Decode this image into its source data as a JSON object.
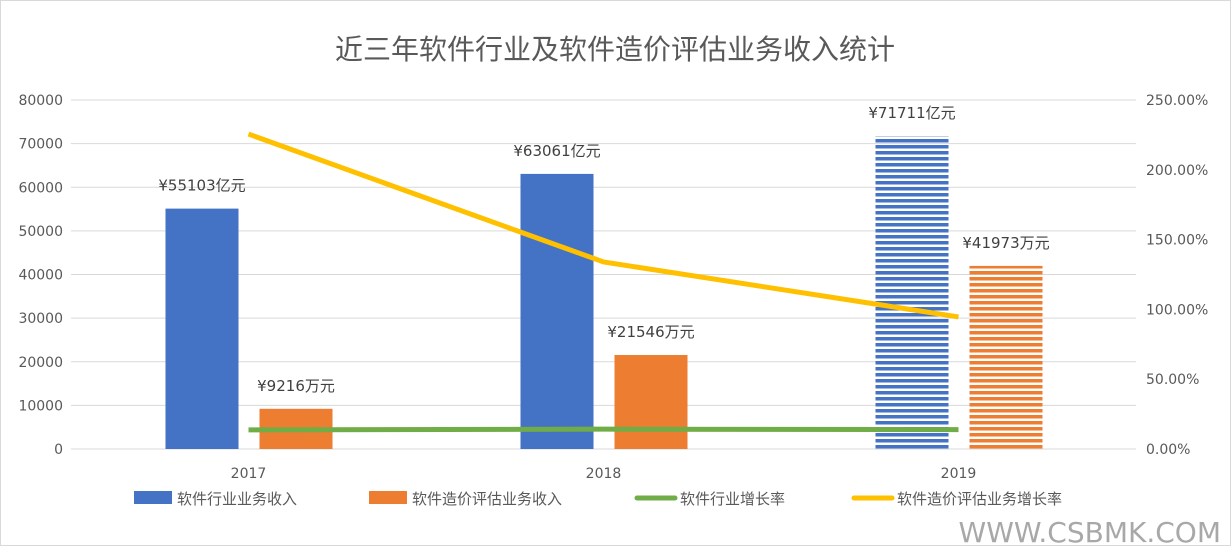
{
  "chart_data": {
    "type": "bar",
    "title": "近三年软件行业及软件造价评估业务收入统计",
    "categories": [
      "2017",
      "2018",
      "2019"
    ],
    "y_left": {
      "ylim": [
        0,
        80000
      ],
      "ticks": [
        "0",
        "10000",
        "20000",
        "30000",
        "40000",
        "50000",
        "60000",
        "70000",
        "80000"
      ]
    },
    "y_right": {
      "ylim": [
        0,
        2.5
      ],
      "ticks": [
        "0.00%",
        "50.00%",
        "100.00%",
        "150.00%",
        "200.00%",
        "250.00%"
      ]
    },
    "grid": true,
    "legend_position": "bottom",
    "series": [
      {
        "name": "软件行业业务收入",
        "type": "bar",
        "axis": "left",
        "color": "#4472C4",
        "values": [
          55103,
          63061,
          71711
        ],
        "labels": [
          "¥55103亿元",
          "¥63061亿元",
          "¥71711亿元"
        ],
        "striped_last": true
      },
      {
        "name": "软件造价评估业务收入",
        "type": "bar",
        "axis": "left",
        "color": "#ED7D31",
        "values": [
          9216,
          21546,
          41973
        ],
        "labels": [
          "¥9216万元",
          "¥21546万元",
          "¥41973万元"
        ],
        "striped_last": true
      },
      {
        "name": "软件行业增长率",
        "type": "line",
        "axis": "right",
        "color": "#70AD47",
        "values": [
          0.137,
          0.142,
          0.139
        ]
      },
      {
        "name": "软件造价评估业务增长率",
        "type": "line",
        "axis": "right",
        "color": "#FFC000",
        "values": [
          2.256,
          1.34,
          0.946
        ]
      }
    ]
  },
  "watermark": "WWW.CSBMK.COM"
}
